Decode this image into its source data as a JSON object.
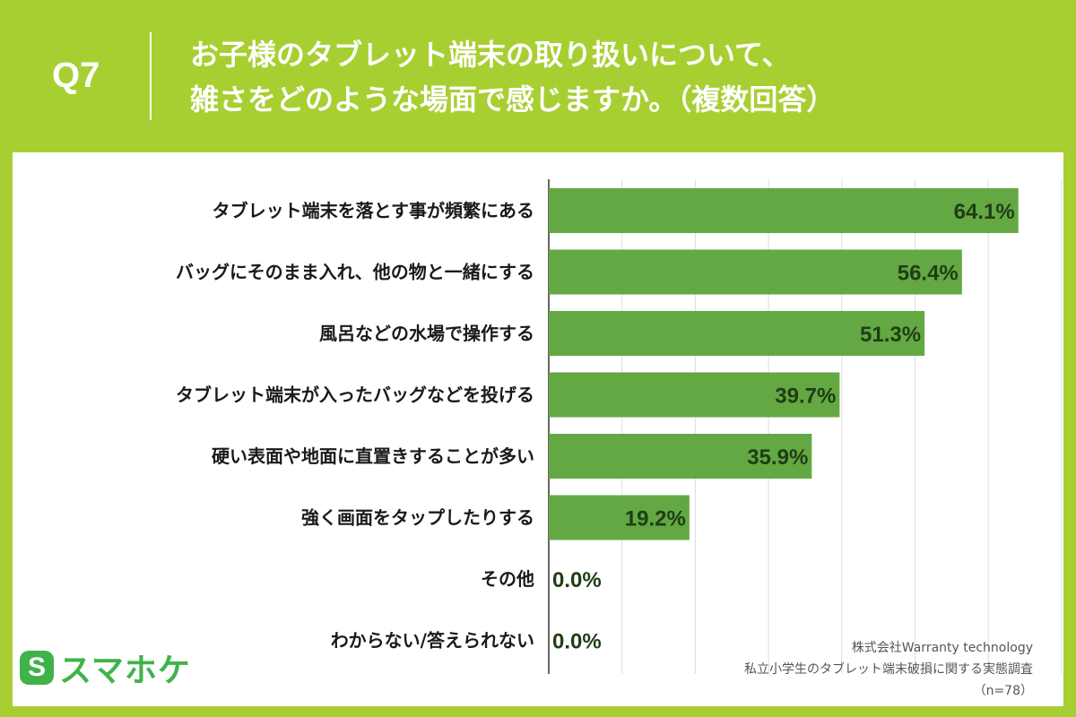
{
  "header": {
    "question_no": "Q7",
    "title_line1": "お子様のタブレット端末の取り扱いについて、",
    "title_line2": "雑さをどのような場面で感じますか。（複数回答）"
  },
  "chart_data": {
    "type": "bar",
    "orientation": "horizontal",
    "categories": [
      "タブレット端末を落とす事が頻繁にある",
      "バッグにそのまま入れ、他の物と一緒にする",
      "風呂などの水場で操作する",
      "タブレット端末が入ったバッグなどを投げる",
      "硬い表面や地面に直置きすることが多い",
      "強く画面をタップしたりする",
      "その他",
      "わからない/答えられない"
    ],
    "values": [
      64.1,
      56.4,
      51.3,
      39.7,
      35.9,
      19.2,
      0.0,
      0.0
    ],
    "value_labels": [
      "64.1%",
      "56.4%",
      "51.3%",
      "39.7%",
      "35.9%",
      "19.2%",
      "0.0%",
      "0.0%"
    ],
    "xlim": [
      0,
      70
    ],
    "grid": true,
    "bar_color": "#63a843"
  },
  "source": {
    "company": "株式会社Warranty technology",
    "survey": "私立小学生のタブレット端末破損に関する実態調査",
    "sample": "（n=78）"
  },
  "logo": {
    "mark": "S",
    "text": "スマホケ",
    "color": "#3fb34a"
  },
  "colors": {
    "background": "#a8cf32",
    "panel": "#ffffff"
  }
}
